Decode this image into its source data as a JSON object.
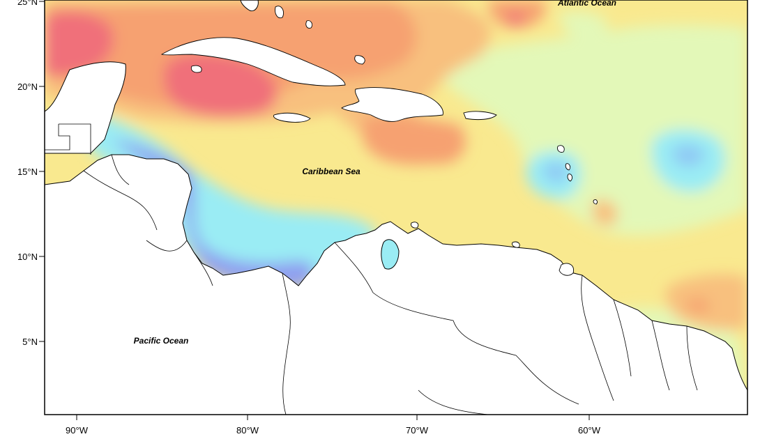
{
  "map": {
    "labels": {
      "atlantic": "Atlantic Ocean",
      "caribbean": "Caribbean Sea",
      "pacific": "Pacific Ocean"
    },
    "lat_ticks": [
      "25°N",
      "20°N",
      "15°N",
      "10°N",
      "5°N"
    ],
    "lon_ticks": [
      "90°W",
      "80°W",
      "70°W",
      "60°W"
    ],
    "colors": {
      "red": "#f0707a",
      "orange": "#f6a171",
      "light_orange": "#f8c07e",
      "yellow": "#f9e98f",
      "pale_green": "#e3f8b8",
      "cyan": "#9aecf4",
      "light_blue": "#8fc8f4",
      "blue": "#8f9ff0",
      "land": "#ffffff",
      "coast": "#000000"
    }
  }
}
